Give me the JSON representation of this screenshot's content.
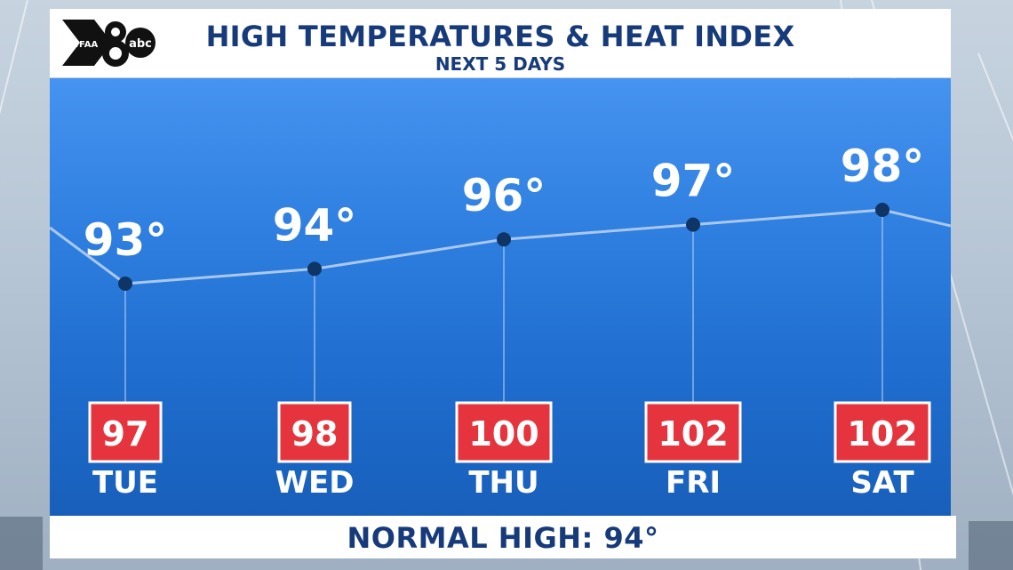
{
  "header": {
    "title": "HIGH TEMPERATURES & HEAT INDEX",
    "subtitle": "NEXT 5 DAYS",
    "logo_text": "WFAA 8 abc"
  },
  "footer": {
    "normal_high_label": "NORMAL HIGH:  94°"
  },
  "colors": {
    "title": "#163a7a",
    "panel_top": "#4693f0",
    "panel_bottom": "#185fba",
    "heat_index_box": "#e5343d",
    "marker": "#0f3466",
    "line": "#a9c8ee"
  },
  "chart_data": {
    "type": "line",
    "categories": [
      "TUE",
      "WED",
      "THU",
      "FRI",
      "SAT"
    ],
    "series": [
      {
        "values": [
          93,
          94,
          96,
          97,
          98
        ]
      }
    ],
    "heat_index": [
      97,
      98,
      100,
      102,
      102
    ],
    "temp_labels": [
      "93°",
      "94°",
      "96°",
      "97°",
      "98°"
    ],
    "heat_index_labels": [
      "97",
      "98",
      "100",
      "102",
      "102"
    ],
    "title": "HIGH TEMPERATURES & HEAT INDEX",
    "subtitle": "NEXT 5 DAYS",
    "grid": false,
    "legend": "none"
  }
}
